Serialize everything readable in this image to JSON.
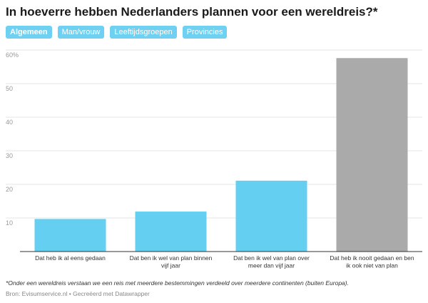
{
  "header": {
    "title": "In hoeverre hebben Nederlanders plannen voor een wereldreis?*"
  },
  "tabs": [
    {
      "label": "Algemeen",
      "active": true
    },
    {
      "label": "Man/vrouw",
      "active": false
    },
    {
      "label": "Leeftijdsgroepen",
      "active": false
    },
    {
      "label": "Provincies",
      "active": false
    }
  ],
  "chart_data": {
    "type": "bar",
    "categories": [
      [
        "Dat heb ik al eens gedaan"
      ],
      [
        "Dat ben ik wel van plan binnen",
        "vijf jaar"
      ],
      [
        "Dat ben ik wel van plan over",
        "meer dan vijf jaar"
      ],
      [
        "Dat heb ik nooit gedaan en ben",
        "ik ook niet van plan"
      ]
    ],
    "values": [
      9.7,
      11.9,
      21.1,
      57.6
    ],
    "colors": [
      "#64cff0",
      "#64cff0",
      "#64cff0",
      "#aaaaaa"
    ],
    "ylim": [
      0,
      60
    ],
    "yticks": [
      10,
      20,
      30,
      40,
      50,
      60
    ],
    "ytick_labels": [
      "10",
      "20",
      "30",
      "40",
      "50",
      "60%"
    ],
    "grid": true,
    "gridColor": "#e6e6e6",
    "axisColor": "#333333"
  },
  "footer": {
    "note": "*Onder een wereldreis verstaan we een reis met meerdere bestemmingen verdeeld over meerdere continenten (buiten Europa).",
    "source": "Bron: Evisumservice.nl • Gecreëerd met Datawrapper"
  }
}
